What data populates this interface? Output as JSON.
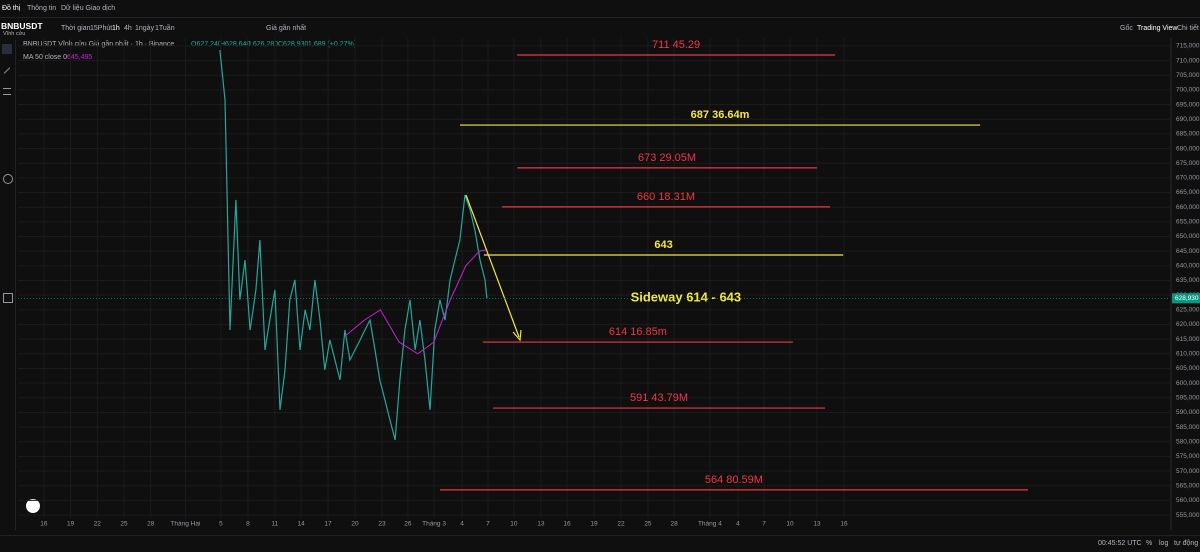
{
  "ui": {
    "tabs": [
      "Đồ thị",
      "Thông tin",
      "Dữ liệu Giao dịch"
    ],
    "symbol": "BNBUSDT",
    "symbol_sub": "Vĩnh cửu",
    "intervals": [
      "Thời gian",
      "15Phút",
      "1h",
      "4h",
      "1ngày",
      "1Tuần"
    ],
    "price_type": "Giá gần nhất",
    "right_tabs": [
      "Gốc",
      "Trading View",
      "Chi tiết"
    ],
    "legend_title": "BNBUSDT Vĩnh cửu Giá gần nhất · 1h · Binance",
    "legend_ohlc": [
      "O627,240",
      "H628,640",
      "L626,280",
      "C628,930",
      "1,689 (+0.27%)"
    ],
    "ma_label": "MA 50 close 0",
    "ma_value": "645,495",
    "clock": "00:45:52 UTC",
    "bottom_buttons": [
      "%",
      "log",
      "tự động"
    ]
  },
  "chart_data": {
    "type": "line",
    "xlim": [
      -0.97,
      42.17
    ],
    "xticks": [
      {
        "value": 0,
        "label": "16"
      },
      {
        "value": 1,
        "label": "19"
      },
      {
        "value": 2,
        "label": "22"
      },
      {
        "value": 3,
        "label": "25"
      },
      {
        "value": 4,
        "label": "28"
      },
      {
        "value": 5.3,
        "label": "Tháng Hai"
      },
      {
        "value": 6.63,
        "label": "5"
      },
      {
        "value": 7.64,
        "label": "8"
      },
      {
        "value": 8.65,
        "label": "11"
      },
      {
        "value": 9.63,
        "label": "14"
      },
      {
        "value": 10.64,
        "label": "17"
      },
      {
        "value": 11.65,
        "label": "20"
      },
      {
        "value": 12.66,
        "label": "23"
      },
      {
        "value": 13.63,
        "label": "26"
      },
      {
        "value": 14.61,
        "label": "Tháng 3"
      },
      {
        "value": 15.66,
        "label": "4"
      },
      {
        "value": 16.63,
        "label": "7"
      },
      {
        "value": 17.6,
        "label": "10"
      },
      {
        "value": 18.61,
        "label": "13"
      },
      {
        "value": 19.59,
        "label": "16"
      },
      {
        "value": 20.6,
        "label": "19"
      },
      {
        "value": 21.61,
        "label": "22"
      },
      {
        "value": 22.62,
        "label": "25"
      },
      {
        "value": 23.6,
        "label": "28"
      },
      {
        "value": 24.94,
        "label": "Tháng 4"
      },
      {
        "value": 25.99,
        "label": "4"
      },
      {
        "value": 26.97,
        "label": "7"
      },
      {
        "value": 27.94,
        "label": "10"
      },
      {
        "value": 28.95,
        "label": "13"
      },
      {
        "value": 29.96,
        "label": "16"
      }
    ],
    "ylim": [
      554000,
      717700
    ],
    "yticks": [
      {
        "value": 555000,
        "label": "555,000"
      },
      {
        "value": 560000,
        "label": "560,000"
      },
      {
        "value": 565000,
        "label": "565,000"
      },
      {
        "value": 570000,
        "label": "570,000"
      },
      {
        "value": 575000,
        "label": "575,000"
      },
      {
        "value": 580000,
        "label": "580,000"
      },
      {
        "value": 585000,
        "label": "585,000"
      },
      {
        "value": 590000,
        "label": "590,000"
      },
      {
        "value": 595000,
        "label": "595,000"
      },
      {
        "value": 600000,
        "label": "600,000"
      },
      {
        "value": 605000,
        "label": "605,000"
      },
      {
        "value": 610000,
        "label": "610,000"
      },
      {
        "value": 615000,
        "label": "615,000"
      },
      {
        "value": 620000,
        "label": "620,000"
      },
      {
        "value": 625000,
        "label": "625,000"
      },
      {
        "value": 630000,
        "label": "630,000"
      },
      {
        "value": 635000,
        "label": "635,000"
      },
      {
        "value": 640000,
        "label": "640,000"
      },
      {
        "value": 645000,
        "label": "645,000"
      },
      {
        "value": 650000,
        "label": "650,000"
      },
      {
        "value": 655000,
        "label": "655,000"
      },
      {
        "value": 660000,
        "label": "660,000"
      },
      {
        "value": 665000,
        "label": "665,000"
      },
      {
        "value": 670000,
        "label": "670,000"
      },
      {
        "value": 675000,
        "label": "675,000"
      },
      {
        "value": 680000,
        "label": "680,000"
      },
      {
        "value": 685000,
        "label": "685,000"
      },
      {
        "value": 690000,
        "label": "690,000"
      },
      {
        "value": 695000,
        "label": "695,000"
      },
      {
        "value": 700000,
        "label": "700,000"
      },
      {
        "value": 705000,
        "label": "705,000"
      },
      {
        "value": 710000,
        "label": "710,000"
      },
      {
        "value": 715000,
        "label": "715,000"
      }
    ],
    "grid": true,
    "series": [
      {
        "color": "#26a69a",
        "x": [
          6.59,
          6.78,
          6.97,
          7.19,
          7.34,
          7.53,
          7.72,
          7.94,
          8.09,
          8.28,
          8.46,
          8.65,
          8.84,
          9.03,
          9.21,
          9.4,
          9.59,
          9.78,
          9.96,
          10.15,
          10.34,
          10.52,
          10.71,
          11.09,
          11.27,
          11.46,
          11.84,
          12.02,
          12.21,
          12.4,
          12.58,
          12.77,
          12.96,
          13.15,
          13.33,
          13.52,
          13.71,
          13.9,
          14.08,
          14.27,
          14.46,
          14.64,
          14.83,
          15.02,
          15.21,
          15.39,
          15.58,
          15.77,
          15.96,
          16.14,
          16.33,
          16.52,
          16.59
        ],
        "values": [
          713600,
          696600,
          618100,
          662500,
          628400,
          642000,
          618100,
          631800,
          648800,
          611300,
          621500,
          631800,
          590900,
          604500,
          628400,
          635200,
          611300,
          625000,
          618100,
          635200,
          621500,
          604500,
          614700,
          601100,
          618100,
          607900,
          614700,
          618100,
          621500,
          611300,
          601100,
          594300,
          587400,
          580600,
          601100,
          618100,
          628400,
          611300,
          621500,
          607900,
          590900,
          618100,
          628400,
          621500,
          635200,
          642000,
          648800,
          664200,
          659100,
          652200,
          642000,
          635200,
          628930
        ]
      },
      {
        "color": "#c026d3",
        "x": [
          11.27,
          12.0,
          12.6,
          13.3,
          14.0,
          14.6,
          15.2,
          15.8,
          16.3,
          16.59
        ],
        "values": [
          616000,
          621500,
          625000,
          614000,
          610000,
          614000,
          628000,
          640000,
          645000,
          645495
        ]
      }
    ],
    "last_price": {
      "value": 628930,
      "label": "628,930",
      "color": "#089981"
    },
    "levels": [
      {
        "label": "711 45.29",
        "value": 711900,
        "x": [
          17.72,
          29.63
        ],
        "color": "#f23645"
      },
      {
        "label": "687 36.64m",
        "value": 688000,
        "x": [
          15.58,
          35.06
        ],
        "color": "#f5e642"
      },
      {
        "label": "673  29.05M",
        "value": 673400,
        "x": [
          17.72,
          28.95
        ],
        "color": "#f23645"
      },
      {
        "label": "660 18.31M",
        "value": 660100,
        "x": [
          17.15,
          29.44
        ],
        "color": "#f23645"
      },
      {
        "label": "643",
        "value": 643700,
        "x": [
          16.48,
          29.93
        ],
        "color": "#f5e642"
      },
      {
        "label": "614 16.85m",
        "value": 614000,
        "x": [
          16.44,
          28.05
        ],
        "color": "#f23645"
      },
      {
        "label": "591 43.79M",
        "value": 591500,
        "x": [
          16.82,
          29.25
        ],
        "color": "#f23645"
      },
      {
        "label": "564 80.59M",
        "value": 563600,
        "x": [
          14.83,
          36.85
        ],
        "color": "#f23645"
      }
    ],
    "annotations": [
      {
        "text": "Sideway 614 - 643",
        "x": 24.04,
        "y": 629000,
        "color": "#f5e642"
      }
    ]
  }
}
